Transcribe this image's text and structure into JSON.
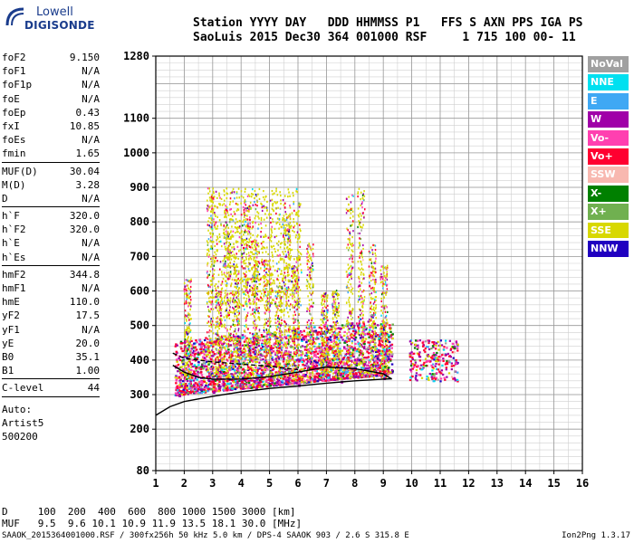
{
  "logo": {
    "line1": "Lowell",
    "line2": "DIGISONDE"
  },
  "header": {
    "line1": "Station YYYY DAY   DDD HHMMSS P1   FFS S AXN PPS IGA PS",
    "line2": "SaoLuis 2015 Dec30 364 001000 RSF     1 715 100 00- 11"
  },
  "params": {
    "group1": [
      {
        "name": "foF2",
        "value": "9.150"
      },
      {
        "name": "foF1",
        "value": "N/A"
      },
      {
        "name": "foF1p",
        "value": "N/A"
      },
      {
        "name": "foE",
        "value": "N/A"
      },
      {
        "name": "foEp",
        "value": "0.43"
      },
      {
        "name": "fxI",
        "value": "10.85"
      },
      {
        "name": "foEs",
        "value": "N/A"
      },
      {
        "name": "fmin",
        "value": "1.65"
      }
    ],
    "group2": [
      {
        "name": "MUF(D)",
        "value": "30.04"
      },
      {
        "name": "M(D)",
        "value": "3.28"
      },
      {
        "name": "D",
        "value": "N/A"
      }
    ],
    "group3": [
      {
        "name": "h`F",
        "value": "320.0"
      },
      {
        "name": "h`F2",
        "value": "320.0"
      },
      {
        "name": "h`E",
        "value": "N/A"
      },
      {
        "name": "h`Es",
        "value": "N/A"
      }
    ],
    "group4": [
      {
        "name": "hmF2",
        "value": "344.8"
      },
      {
        "name": "hmF1",
        "value": "N/A"
      },
      {
        "name": "hmE",
        "value": "110.0"
      },
      {
        "name": "yF2",
        "value": "17.5"
      },
      {
        "name": "yF1",
        "value": "N/A"
      },
      {
        "name": "yE",
        "value": "20.0"
      },
      {
        "name": "B0",
        "value": "35.1"
      },
      {
        "name": "B1",
        "value": "1.00"
      }
    ],
    "group5": [
      {
        "name": "C-level",
        "value": "44"
      }
    ],
    "auto": [
      "Auto:",
      "Artist5",
      "500200"
    ]
  },
  "legend": [
    {
      "label": "NoVal",
      "color": "#a0a0a0"
    },
    {
      "label": "NNE",
      "color": "#00e0f0"
    },
    {
      "label": "E",
      "color": "#3fa8f4"
    },
    {
      "label": "W",
      "color": "#a000a8"
    },
    {
      "label": "Vo-",
      "color": "#ff40b0"
    },
    {
      "label": "Vo+",
      "color": "#ff0030"
    },
    {
      "label": "SSW",
      "color": "#f8b8b0"
    },
    {
      "label": "X-",
      "color": "#008000"
    },
    {
      "label": "X+",
      "color": "#70b050"
    },
    {
      "label": "SSE",
      "color": "#d8d800"
    },
    {
      "label": "NNW",
      "color": "#2000c0"
    }
  ],
  "chart_data": {
    "type": "scatter",
    "xlim": [
      1,
      16
    ],
    "ylim": [
      80,
      1280
    ],
    "x_ticks": [
      "1",
      "2",
      "3",
      "4",
      "5",
      "6",
      "7",
      "8",
      "9",
      "10",
      "11",
      "12",
      "13",
      "14",
      "15",
      "16"
    ],
    "y_ticks": [
      "80",
      "200",
      "300",
      "400",
      "500",
      "600",
      "700",
      "800",
      "900",
      "1000",
      "1100",
      "1280"
    ],
    "grid": true,
    "series": [
      {
        "color_key": "Vo+",
        "points": [
          [
            2.0,
            330
          ],
          [
            3.0,
            335
          ],
          [
            4.0,
            340
          ],
          [
            5.0,
            345
          ],
          [
            6.0,
            350
          ],
          [
            7.0,
            360
          ],
          [
            8.0,
            365
          ],
          [
            9.0,
            370
          ]
        ]
      },
      {
        "color_key": "W",
        "points": [
          [
            1.8,
            300
          ],
          [
            3.0,
            310
          ],
          [
            4.5,
            320
          ],
          [
            6.0,
            330
          ],
          [
            7.5,
            340
          ],
          [
            9.0,
            350
          ]
        ]
      },
      {
        "color_key": "SSE",
        "points": [
          [
            3.5,
            700
          ],
          [
            4.0,
            750
          ],
          [
            4.5,
            680
          ],
          [
            5.0,
            650
          ],
          [
            5.5,
            670
          ],
          [
            6.0,
            700
          ]
        ]
      }
    ],
    "curves": [
      {
        "name": "",
        "points": [
          [
            1,
            240
          ],
          [
            1.5,
            265
          ],
          [
            2,
            280
          ],
          [
            3,
            295
          ],
          [
            4,
            308
          ],
          [
            5,
            318
          ],
          [
            6,
            325
          ],
          [
            7,
            333
          ],
          [
            8,
            340
          ],
          [
            9,
            345
          ],
          [
            9.3,
            346
          ]
        ]
      },
      {
        "name": "",
        "points": [
          [
            1.6,
            385
          ],
          [
            2,
            365
          ],
          [
            2.5,
            350
          ],
          [
            3,
            345
          ],
          [
            4,
            345
          ],
          [
            5,
            352
          ],
          [
            6,
            365
          ],
          [
            7,
            380
          ],
          [
            8,
            375
          ],
          [
            8.5,
            368
          ],
          [
            9,
            360
          ],
          [
            9.3,
            345
          ]
        ]
      },
      {
        "name": "",
        "points": [
          [
            1.6,
            420
          ],
          [
            2,
            405
          ],
          [
            3,
            395
          ],
          [
            4,
            388
          ],
          [
            5,
            382
          ],
          [
            6,
            372
          ]
        ]
      }
    ]
  },
  "bottom": {
    "d_line": "D     100  200  400  600  800 1000 1500 3000 [km]",
    "muf_line": "MUF   9.5  9.6 10.1 10.9 11.9 13.5 18.1 30.0 [MHz]"
  },
  "footer": {
    "text": "SAAOK_2015364001000.RSF / 300fx256h 50 kHz 5.0 km / DPS-4 SAAOK 903 / 2.6 S 315.8 E",
    "version": "Ion2Png 1.3.17"
  }
}
